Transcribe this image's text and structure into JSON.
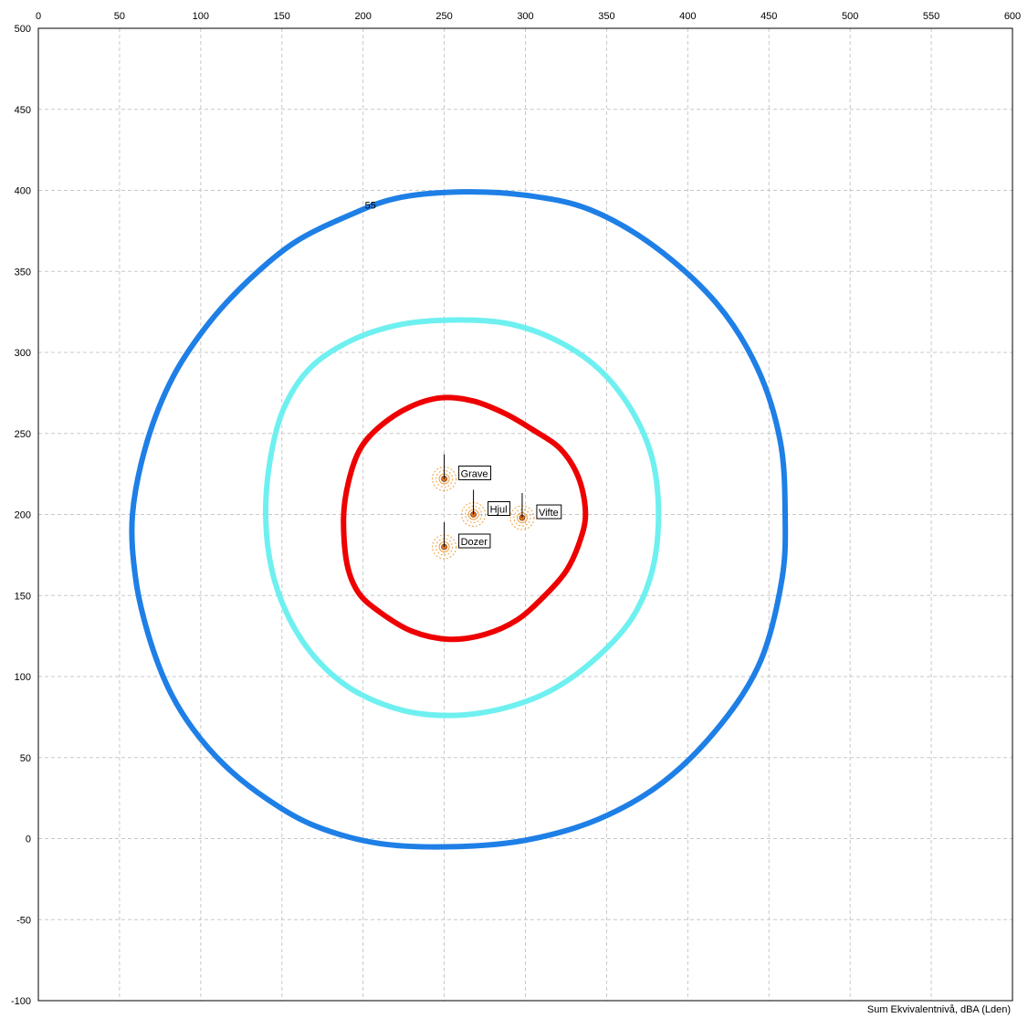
{
  "chart_data": {
    "type": "map",
    "xlim": [
      0,
      600
    ],
    "ylim": [
      -100,
      500
    ],
    "x_ticks": [
      0,
      50,
      100,
      150,
      200,
      250,
      300,
      350,
      400,
      450,
      500,
      550,
      600
    ],
    "y_ticks": [
      500,
      450,
      400,
      350,
      300,
      250,
      200,
      150,
      100,
      50,
      0,
      -50,
      -100
    ],
    "x_tick_labels": [
      "0",
      "50",
      "100",
      "150",
      "200",
      "250",
      "300",
      "350",
      "400",
      "450",
      "500",
      "550",
      "600"
    ],
    "y_tick_labels": [
      "500",
      "450",
      "400",
      "350",
      "300",
      "250",
      "200",
      "150",
      "100",
      "50",
      "0",
      "-50",
      "-100"
    ],
    "grid": true,
    "footer_label": "Sum Ekvivalentnivå, dBA (Lden)",
    "contours": [
      {
        "color": "#1e7fe6",
        "label": "55",
        "label_at": [
          200,
          391
        ],
        "points": [
          [
            58,
            200
          ],
          [
            60,
            160
          ],
          [
            68,
            125
          ],
          [
            80,
            93
          ],
          [
            95,
            68
          ],
          [
            115,
            45
          ],
          [
            140,
            25
          ],
          [
            170,
            8
          ],
          [
            210,
            -3
          ],
          [
            255,
            -5
          ],
          [
            300,
            -1
          ],
          [
            345,
            12
          ],
          [
            385,
            35
          ],
          [
            420,
            70
          ],
          [
            445,
            110
          ],
          [
            458,
            160
          ],
          [
            460,
            200
          ],
          [
            457,
            245
          ],
          [
            443,
            290
          ],
          [
            418,
            330
          ],
          [
            380,
            365
          ],
          [
            340,
            388
          ],
          [
            300,
            397
          ],
          [
            258,
            399
          ],
          [
            220,
            395
          ],
          [
            190,
            384
          ],
          [
            158,
            368
          ],
          [
            130,
            345
          ],
          [
            105,
            318
          ],
          [
            83,
            285
          ],
          [
            67,
            245
          ]
        ]
      },
      {
        "color": "#6ff0f0",
        "points": [
          [
            140,
            200
          ],
          [
            144,
            165
          ],
          [
            155,
            135
          ],
          [
            172,
            110
          ],
          [
            195,
            91
          ],
          [
            225,
            79
          ],
          [
            255,
            76
          ],
          [
            285,
            80
          ],
          [
            315,
            91
          ],
          [
            342,
            110
          ],
          [
            365,
            135
          ],
          [
            378,
            165
          ],
          [
            382,
            200
          ],
          [
            378,
            235
          ],
          [
            365,
            265
          ],
          [
            345,
            290
          ],
          [
            318,
            308
          ],
          [
            288,
            318
          ],
          [
            255,
            320
          ],
          [
            222,
            317
          ],
          [
            192,
            307
          ],
          [
            167,
            290
          ],
          [
            151,
            265
          ],
          [
            143,
            235
          ]
        ]
      },
      {
        "color": "#ee0000",
        "points": [
          [
            188,
            198
          ],
          [
            190,
            170
          ],
          [
            197,
            152
          ],
          [
            210,
            140
          ],
          [
            230,
            128
          ],
          [
            253,
            123
          ],
          [
            275,
            126
          ],
          [
            295,
            135
          ],
          [
            312,
            150
          ],
          [
            325,
            165
          ],
          [
            333,
            182
          ],
          [
            337,
            200
          ],
          [
            333,
            222
          ],
          [
            322,
            240
          ],
          [
            305,
            252
          ],
          [
            288,
            262
          ],
          [
            268,
            270
          ],
          [
            248,
            272
          ],
          [
            228,
            266
          ],
          [
            210,
            254
          ],
          [
            198,
            240
          ],
          [
            191,
            220
          ]
        ]
      }
    ],
    "sources": [
      {
        "name": "Grave",
        "x": 250,
        "y": 222
      },
      {
        "name": "Hjul",
        "x": 268,
        "y": 200
      },
      {
        "name": "Vifte",
        "x": 298,
        "y": 198
      },
      {
        "name": "Dozer",
        "x": 250,
        "y": 180
      }
    ]
  }
}
